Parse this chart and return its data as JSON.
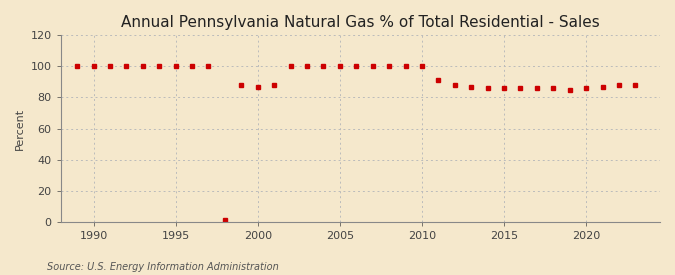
{
  "title": "Annual Pennsylvania Natural Gas % of Total Residential - Sales",
  "ylabel": "Percent",
  "source": "Source: U.S. Energy Information Administration",
  "background_color": "#f5e8cc",
  "plot_background_color": "#f5e8cc",
  "grid_color": "#bbbbbb",
  "marker_color": "#cc0000",
  "years": [
    1989,
    1990,
    1991,
    1992,
    1993,
    1994,
    1995,
    1996,
    1997,
    1998,
    1999,
    2000,
    2001,
    2002,
    2003,
    2004,
    2005,
    2006,
    2007,
    2008,
    2009,
    2010,
    2011,
    2012,
    2013,
    2014,
    2015,
    2016,
    2017,
    2018,
    2019,
    2020,
    2021,
    2022,
    2023
  ],
  "values": [
    100,
    100,
    100,
    100,
    100,
    100,
    100,
    100,
    100,
    1,
    88,
    87,
    88,
    100,
    100,
    100,
    100,
    100,
    100,
    100,
    100,
    100,
    91,
    88,
    87,
    86,
    86,
    86,
    86,
    86,
    85,
    86,
    87,
    88,
    88
  ],
  "ylim": [
    0,
    120
  ],
  "yticks": [
    0,
    20,
    40,
    60,
    80,
    100,
    120
  ],
  "xlim": [
    1988.0,
    2024.5
  ],
  "xticks": [
    1990,
    1995,
    2000,
    2005,
    2010,
    2015,
    2020
  ],
  "title_fontsize": 11,
  "axis_fontsize": 8,
  "source_fontsize": 7
}
